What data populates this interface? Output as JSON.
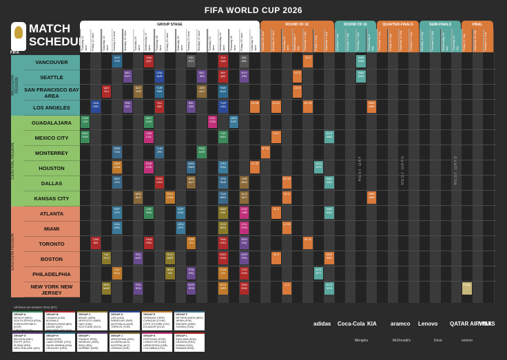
{
  "header": {
    "title": "FIFA WORLD CUP 2026"
  },
  "logo": {
    "line1": "MATCH",
    "line2": "SCHEDULE",
    "fifa": "FIFA"
  },
  "stages": [
    {
      "label": "GROUP STAGE",
      "color": "#ffffff",
      "text": "#111"
    },
    {
      "label": "ROUND OF 32",
      "color": "#d9793a",
      "text": "#fff"
    },
    {
      "label": "ROUND OF 16",
      "color": "#5aa9a0",
      "text": "#fff"
    },
    {
      "label": "QUARTER-FINALS",
      "color": "#d9793a",
      "text": "#fff"
    },
    {
      "label": "SEMI-FINALS",
      "color": "#5aa9a0",
      "text": "#fff"
    },
    {
      "label": "FINAL",
      "color": "#d9793a",
      "text": "#fff"
    }
  ],
  "dates": [
    "Thursday 11 June",
    "Friday 12 June",
    "Saturday 13 June",
    "Sunday 14 June",
    "Monday 15 June",
    "Tuesday 16 June",
    "Wednesday 17 June",
    "Thursday 18 June",
    "Friday 19 June",
    "Saturday 20 June",
    "Sunday 21 June",
    "Monday 22 June",
    "Tuesday 23 June",
    "Wednesday 24 June",
    "Thursday 25 June",
    "Friday 26 June",
    "Saturday 27 June",
    "Sunday 28 June",
    "Monday 29 June",
    "Tuesday 30 June",
    "Wednesday 1 July",
    "Thursday 2 July",
    "Friday 3 July",
    "Saturday 4 July",
    "Sunday 5 July",
    "Monday 6 July",
    "Tuesday 7 July",
    "Wednesday 8 July",
    "Thursday 9 July",
    "Friday 10 July",
    "Saturday 11 July",
    "Sunday 12 July",
    "Monday 13 July",
    "Tuesday 14 July",
    "Wednesday 15 July",
    "Thursday 16 July",
    "Friday 17 July",
    "Saturday 18 July",
    "Sunday 19 July"
  ],
  "regions": [
    {
      "label": "WESTERN REGION",
      "color": "#5aa9a0"
    },
    {
      "label": "CENTRAL REGION",
      "color": "#8fc46a"
    },
    {
      "label": "EASTERN REGION",
      "color": "#e08a6a"
    }
  ],
  "cities": [
    {
      "name": "VANCOUVER",
      "color": "#5aa9a0"
    },
    {
      "name": "SEATTLE",
      "color": "#5aa9a0"
    },
    {
      "name": "SAN FRANCISCO BAY AREA",
      "color": "#5aa9a0"
    },
    {
      "name": "LOS ANGELES",
      "color": "#5aa9a0"
    },
    {
      "name": "GUADALAJARA",
      "color": "#8fc46a"
    },
    {
      "name": "MEXICO CITY",
      "color": "#8fc46a"
    },
    {
      "name": "MONTERREY",
      "color": "#8fc46a"
    },
    {
      "name": "HOUSTON",
      "color": "#8fc46a"
    },
    {
      "name": "DALLAS",
      "color": "#8fc46a"
    },
    {
      "name": "KANSAS CITY",
      "color": "#8fc46a"
    },
    {
      "name": "ATLANTA",
      "color": "#e08a6a"
    },
    {
      "name": "MIAMI",
      "color": "#e08a6a"
    },
    {
      "name": "TORONTO",
      "color": "#e08a6a"
    },
    {
      "name": "BOSTON",
      "color": "#e08a6a"
    },
    {
      "name": "PHILADELPHIA",
      "color": "#e08a6a"
    },
    {
      "name": "NEW YORK NEW JERSEY",
      "color": "#e08a6a"
    }
  ],
  "matches": [
    {
      "row": 0,
      "col": 3,
      "t": "AUS TUR",
      "c": "#2d6a8f"
    },
    {
      "row": 0,
      "col": 6,
      "t": "CAN QAT",
      "c": "#b02a2a"
    },
    {
      "row": 0,
      "col": 10,
      "t": "NZL EGY",
      "c": "#555"
    },
    {
      "row": 0,
      "col": 13,
      "t": "SUI CAN",
      "c": "#b02a2a"
    },
    {
      "row": 0,
      "col": 15,
      "t": "NZL BEL",
      "c": "#555"
    },
    {
      "row": 0,
      "col": 21,
      "t": "1B 3",
      "c": "#d9793a"
    },
    {
      "row": 0,
      "col": 26,
      "t": "W85 W86",
      "c": "#5aa9a0"
    },
    {
      "row": 1,
      "col": 4,
      "t": "BEL EGY",
      "c": "#6a4a8f"
    },
    {
      "row": 1,
      "col": 7,
      "t": "USA AUS",
      "c": "#2a4a9a"
    },
    {
      "row": 1,
      "col": 11,
      "t": "BEL IRN",
      "c": "#6a4a8f"
    },
    {
      "row": 1,
      "col": 13,
      "t": "BIH QAT",
      "c": "#b02a2a"
    },
    {
      "row": 1,
      "col": 15,
      "t": "EGY IRN",
      "c": "#6a4a8f"
    },
    {
      "row": 1,
      "col": 20,
      "t": "1G 3",
      "c": "#d9793a"
    },
    {
      "row": 1,
      "col": 26,
      "t": "W82 W84",
      "c": "#5aa9a0"
    },
    {
      "row": 2,
      "col": 2,
      "t": "QAT SUI",
      "c": "#b02a2a"
    },
    {
      "row": 2,
      "col": 5,
      "t": "AUT JOR",
      "c": "#8a6a3a"
    },
    {
      "row": 2,
      "col": 7,
      "t": "TUR PAR",
      "c": "#2d6a8f"
    },
    {
      "row": 2,
      "col": 11,
      "t": "JOR ALG",
      "c": "#8a6a3a"
    },
    {
      "row": 2,
      "col": 13,
      "t": "PAR AUS",
      "c": "#2d6a8f"
    },
    {
      "row": 2,
      "col": 20,
      "t": "1D 3",
      "c": "#d9793a"
    },
    {
      "row": 3,
      "col": 1,
      "t": "USA PAR",
      "c": "#2a4a9a"
    },
    {
      "row": 3,
      "col": 4,
      "t": "IRN NZL",
      "c": "#6a4a8f"
    },
    {
      "row": 3,
      "col": 7,
      "t": "SUI BIH",
      "c": "#b02a2a"
    },
    {
      "row": 3,
      "col": 10,
      "t": "BEL IRN",
      "c": "#6a4a8f"
    },
    {
      "row": 3,
      "col": 13,
      "t": "TUR USA",
      "c": "#2a4a9a"
    },
    {
      "row": 3,
      "col": 16,
      "t": "2A 2B",
      "c": "#d9793a"
    },
    {
      "row": 3,
      "col": 18,
      "t": "1H 2J",
      "c": "#d9793a"
    },
    {
      "row": 3,
      "col": 21,
      "t": "2D 2G",
      "c": "#d9793a"
    },
    {
      "row": 3,
      "col": 27,
      "t": "W89 W90",
      "c": "#d9793a"
    },
    {
      "row": 4,
      "col": 0,
      "t": "KOR CZE",
      "c": "#3a8a5a"
    },
    {
      "row": 4,
      "col": 6,
      "t": "MEX KOR",
      "c": "#3a8a5a"
    },
    {
      "row": 4,
      "col": 12,
      "t": "COL COD",
      "c": "#c0307a"
    },
    {
      "row": 4,
      "col": 14,
      "t": "URU ESP",
      "c": "#3a7a9a"
    },
    {
      "row": 5,
      "col": 0,
      "t": "MEX RSA",
      "c": "#3a8a5a"
    },
    {
      "row": 5,
      "col": 6,
      "t": "UZB COL",
      "c": "#c0307a"
    },
    {
      "row": 5,
      "col": 13,
      "t": "CZE MEX",
      "c": "#3a8a5a"
    },
    {
      "row": 5,
      "col": 18,
      "t": "1A 3",
      "c": "#d9793a"
    },
    {
      "row": 5,
      "col": 23,
      "t": "W79 W80",
      "c": "#5aa9a0"
    },
    {
      "row": 6,
      "col": 3,
      "t": "SWE TUN",
      "c": "#3a6a8a"
    },
    {
      "row": 6,
      "col": 7,
      "t": "TUN JPN",
      "c": "#3a6a8a"
    },
    {
      "row": 6,
      "col": 11,
      "t": "RSA KOR",
      "c": "#3a8a5a"
    },
    {
      "row": 6,
      "col": 17,
      "t": "1F 2C",
      "c": "#d9793a"
    },
    {
      "row": 7,
      "col": 3,
      "t": "GER CUW",
      "c": "#c07a2a"
    },
    {
      "row": 7,
      "col": 6,
      "t": "POR COD",
      "c": "#c0307a"
    },
    {
      "row": 7,
      "col": 10,
      "t": "NED SWE",
      "c": "#3a6a8a"
    },
    {
      "row": 7,
      "col": 13,
      "t": "CPV KSA",
      "c": "#3a7a9a"
    },
    {
      "row": 7,
      "col": 16,
      "t": "1C 2F",
      "c": "#d9793a"
    },
    {
      "row": 7,
      "col": 22,
      "t": "W73 W75",
      "c": "#5aa9a0"
    },
    {
      "row": 8,
      "col": 3,
      "t": "NED JPN",
      "c": "#3a6a8a"
    },
    {
      "row": 8,
      "col": 7,
      "t": "ENG CRO",
      "c": "#b02a2a"
    },
    {
      "row": 8,
      "col": 10,
      "t": "ARG AUT",
      "c": "#8a6a3a"
    },
    {
      "row": 8,
      "col": 13,
      "t": "JPN SWE",
      "c": "#3a6a8a"
    },
    {
      "row": 8,
      "col": 15,
      "t": "JOR ARG",
      "c": "#8a6a3a"
    },
    {
      "row": 8,
      "col": 19,
      "t": "2D 2K",
      "c": "#d9793a"
    },
    {
      "row": 8,
      "col": 23,
      "t": "W83 W84",
      "c": "#5aa9a0"
    },
    {
      "row": 9,
      "col": 5,
      "t": "ARG ALG",
      "c": "#8a6a3a"
    },
    {
      "row": 9,
      "col": 8,
      "t": "ECU CUW",
      "c": "#c07a2a"
    },
    {
      "row": 9,
      "col": 13,
      "t": "TUN NED",
      "c": "#3a6a8a"
    },
    {
      "row": 9,
      "col": 15,
      "t": "ALG AUT",
      "c": "#8a6a3a"
    },
    {
      "row": 9,
      "col": 19,
      "t": "1K 3",
      "c": "#d9793a"
    },
    {
      "row": 9,
      "col": 27,
      "t": "W86 W88",
      "c": "#d9793a"
    },
    {
      "row": 10,
      "col": 3,
      "t": "ESP CPV",
      "c": "#3a7a9a"
    },
    {
      "row": 10,
      "col": 6,
      "t": "CZE RSA",
      "c": "#3a8a5a"
    },
    {
      "row": 10,
      "col": 9,
      "t": "ESP KSA",
      "c": "#3a7a9a"
    },
    {
      "row": 10,
      "col": 13,
      "t": "MAR HAI",
      "c": "#8a7a2a"
    },
    {
      "row": 10,
      "col": 15,
      "t": "COD UZB",
      "c": "#c0307a"
    },
    {
      "row": 10,
      "col": 18,
      "t": "1L 3",
      "c": "#d9793a"
    },
    {
      "row": 10,
      "col": 23,
      "t": "W80 W82",
      "c": "#5aa9a0"
    },
    {
      "row": 11,
      "col": 3,
      "t": "KSA URU",
      "c": "#3a7a9a"
    },
    {
      "row": 11,
      "col": 9,
      "t": "URU CPV",
      "c": "#3a7a9a"
    },
    {
      "row": 11,
      "col": 13,
      "t": "SCO BRA",
      "c": "#8a7a2a"
    },
    {
      "row": 11,
      "col": 15,
      "t": "COL POR",
      "c": "#c0307a"
    },
    {
      "row": 11,
      "col": 19,
      "t": "1J 2H",
      "c": "#d9793a"
    },
    {
      "row": 12,
      "col": 1,
      "t": "CAN BIH",
      "c": "#b02a2a"
    },
    {
      "row": 12,
      "col": 6,
      "t": "GHA PAN",
      "c": "#b02a2a"
    },
    {
      "row": 12,
      "col": 10,
      "t": "GER CIV",
      "c": "#c07a2a"
    },
    {
      "row": 12,
      "col": 13,
      "t": "PAN CRO",
      "c": "#b02a2a"
    },
    {
      "row": 12,
      "col": 15,
      "t": "SEN IRQ",
      "c": "#6a4a8f"
    },
    {
      "row": 12,
      "col": 21,
      "t": "2K 2L",
      "c": "#d9793a"
    },
    {
      "row": 13,
      "col": 2,
      "t": "HAI SCO",
      "c": "#8a7a2a"
    },
    {
      "row": 13,
      "col": 5,
      "t": "IRQ NOR",
      "c": "#6a4a8f"
    },
    {
      "row": 13,
      "col": 8,
      "t": "SCO MAR",
      "c": "#8a7a2a"
    },
    {
      "row": 13,
      "col": 13,
      "t": "ENG GHA",
      "c": "#b02a2a"
    },
    {
      "row": 13,
      "col": 15,
      "t": "NOR FRA",
      "c": "#6a4a8f"
    },
    {
      "row": 13,
      "col": 18,
      "t": "1E 3",
      "c": "#d9793a"
    },
    {
      "row": 13,
      "col": 23,
      "t": "W90 W89",
      "c": "#d9793a"
    },
    {
      "row": 14,
      "col": 3,
      "t": "CIV ECU",
      "c": "#c07a2a"
    },
    {
      "row": 14,
      "col": 8,
      "t": "BRA HAI",
      "c": "#8a7a2a"
    },
    {
      "row": 14,
      "col": 10,
      "t": "FRA IRQ",
      "c": "#6a4a8f"
    },
    {
      "row": 14,
      "col": 13,
      "t": "CUW CIV",
      "c": "#c07a2a"
    },
    {
      "row": 14,
      "col": 15,
      "t": "CRO GHA",
      "c": "#b02a2a"
    },
    {
      "row": 14,
      "col": 22,
      "t": "W74 W77",
      "c": "#5aa9a0"
    },
    {
      "row": 15,
      "col": 2,
      "t": "BRA MAR",
      "c": "#8a7a2a"
    },
    {
      "row": 15,
      "col": 5,
      "t": "FRA SEN",
      "c": "#6a4a8f"
    },
    {
      "row": 15,
      "col": 10,
      "t": "NOR SEN",
      "c": "#6a4a8f"
    },
    {
      "row": 15,
      "col": 13,
      "t": "ECU GER",
      "c": "#c07a2a"
    },
    {
      "row": 15,
      "col": 15,
      "t": "PAN ENG",
      "c": "#b02a2a"
    },
    {
      "row": 15,
      "col": 19,
      "t": "1I 3",
      "c": "#d9793a"
    },
    {
      "row": 15,
      "col": 23,
      "t": "W76 W78",
      "c": "#5aa9a0"
    },
    {
      "row": 15,
      "col": 36,
      "t": "FINAL",
      "c": "#c8b87a"
    }
  ],
  "rest": [
    "REST DAY",
    "REST DAYS",
    "REST DAYS"
  ],
  "footnote": "All times are Eastern Time (ET)",
  "groups": [
    {
      "title": "GROUP A",
      "teams": [
        "MEXICO (MEX)",
        "SOUTH AFRICA (RSA)",
        "KOREA REPUBLIC (KOR)",
        "CZECHIA (CZE)"
      ],
      "color": "#3a8a5a"
    },
    {
      "title": "GROUP B",
      "teams": [
        "CANADA (CAN)",
        "BOSNIA & HERZEGOVINA (BIH)",
        "QATAR (QAT)",
        "SWITZERLAND (SUI)"
      ],
      "color": "#b02a2a"
    },
    {
      "title": "GROUP C",
      "teams": [
        "BRAZIL (BRA)",
        "MOROCCO (MAR)",
        "HAITI (HAI)",
        "SCOTLAND (SCO)"
      ],
      "color": "#8a7a2a"
    },
    {
      "title": "GROUP D",
      "teams": [
        "USA (USA)",
        "PARAGUAY (PAR)",
        "AUSTRALIA (AUS)",
        "TÜRKIYE (TUR)"
      ],
      "color": "#2a4a9a"
    },
    {
      "title": "GROUP E",
      "teams": [
        "GERMANY (GER)",
        "CURAÇAO (CUW)",
        "CÔTE D'IVOIRE (CIV)",
        "ECUADOR (ECU)"
      ],
      "color": "#c07a2a"
    },
    {
      "title": "GROUP F",
      "teams": [
        "NETHERLANDS (NED)",
        "JAPAN (JPN)",
        "SWEDEN (SWE)",
        "TUNISIA (TUN)"
      ],
      "color": "#3a6a8a"
    },
    {
      "title": "GROUP G",
      "teams": [
        "BELGIUM (BEL)",
        "EGYPT (EGY)",
        "IR IRAN (IRN)",
        "NEW ZEALAND (NZL)"
      ],
      "color": "#6a4a8f"
    },
    {
      "title": "GROUP H",
      "teams": [
        "SPAIN (ESP)",
        "CABO VERDE (CPV)",
        "SAUDI ARABIA (KSA)",
        "URUGUAY (URU)"
      ],
      "color": "#3a7a9a"
    },
    {
      "title": "GROUP I",
      "teams": [
        "FRANCE (FRA)",
        "SENEGAL (SEN)",
        "IRAQ (IRQ)",
        "NORWAY (NOR)"
      ],
      "color": "#6a4a8f"
    },
    {
      "title": "GROUP J",
      "teams": [
        "ARGENTINA (ARG)",
        "ALGERIA (ALG)",
        "AUSTRIA (AUT)",
        "JORDAN (JOR)"
      ],
      "color": "#8a6a3a"
    },
    {
      "title": "GROUP K",
      "teams": [
        "PORTUGAL (POR)",
        "CONGO DR (COD)",
        "UZBEKISTAN (UZB)",
        "COLOMBIA (COL)"
      ],
      "color": "#c0307a"
    },
    {
      "title": "GROUP L",
      "teams": [
        "ENGLAND (ENG)",
        "CROATIA (CRO)",
        "GHANA (GHA)",
        "PANAMA (PAN)"
      ],
      "color": "#b02a2a"
    }
  ],
  "sponsors": {
    "top": [
      "adidas",
      "Coca-Cola",
      "KIA",
      "aramco",
      "Lenovo",
      "QATAR AIRWAYS",
      "VISA"
    ],
    "bottom": [
      "Mengniu",
      "McDonald's",
      "Dove",
      "verizon"
    ]
  }
}
